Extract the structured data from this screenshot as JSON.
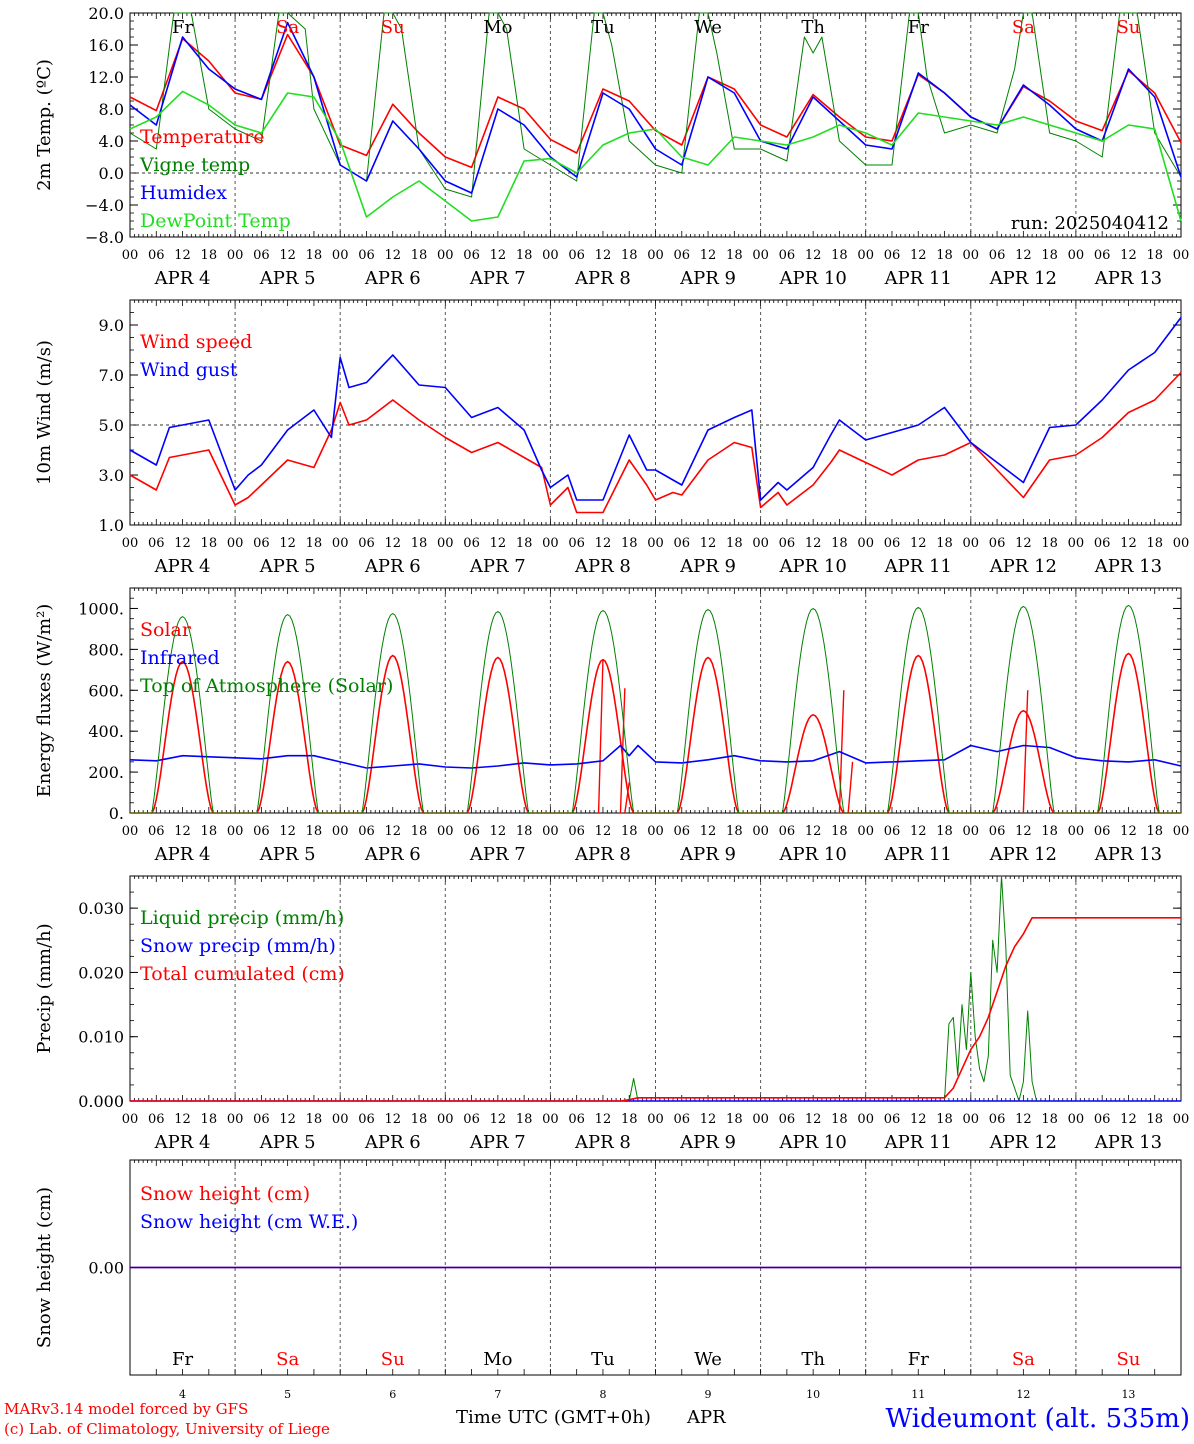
{
  "common": {
    "days": [
      "4",
      "5",
      "6",
      "7",
      "8",
      "9",
      "10",
      "11",
      "12",
      "13"
    ],
    "month": "APR",
    "hour_ticks": [
      "00",
      "06",
      "12",
      "18"
    ],
    "last_hour": "00",
    "weekdays": [
      "Fr",
      "Sa",
      "Su",
      "Mo",
      "Tu",
      "We",
      "Th",
      "Fr",
      "Sa",
      "Su"
    ],
    "weekend_days": [
      1,
      2,
      8,
      9
    ]
  },
  "colors": {
    "red": "#ff0000",
    "green": "#008000",
    "blue": "#0000ff",
    "lime": "#22dd22",
    "black": "#000000"
  },
  "footer": {
    "credit1": "MARv3.14 model forced by GFS",
    "credit2": "(c) Lab. of Climatology, University of Liege",
    "axis_title": "Time UTC (GMT+0h)",
    "month": "APR",
    "station": "Wideumont (alt. 535m)"
  },
  "chart_data": [
    {
      "type": "line",
      "ylabel": "2m Temp. (ºC)",
      "ylim": [
        -8,
        20
      ],
      "yticks": [
        "20.0",
        "16.0",
        "12.0",
        "8.0",
        "4.0",
        "0.0",
        "−4.0",
        "−8.0"
      ],
      "ytick_values": [
        20,
        16,
        12,
        8,
        4,
        0,
        -4,
        -8
      ],
      "reference_line": 0,
      "run_label": "run: 2025040412",
      "x_unit": "hours since Apr 4 00 UTC",
      "series": [
        {
          "name": "Temperature",
          "color": "red",
          "x": [
            0,
            6,
            12,
            18,
            24,
            30,
            36,
            42,
            48,
            54,
            60,
            66,
            72,
            78,
            84,
            90,
            96,
            102,
            108,
            114,
            120,
            126,
            132,
            138,
            144,
            150,
            156,
            162,
            168,
            174,
            180,
            186,
            192,
            198,
            204,
            210,
            216,
            222,
            228,
            234,
            240
          ],
          "y": [
            9.5,
            7.8,
            16.8,
            14.0,
            10.0,
            9.2,
            17.3,
            12.0,
            3.5,
            2.2,
            8.6,
            5.0,
            2.0,
            0.7,
            9.5,
            8.0,
            4.2,
            2.5,
            10.5,
            9.0,
            5.3,
            3.5,
            12.0,
            10.5,
            6.0,
            4.5,
            9.8,
            7.0,
            4.5,
            4.0,
            12.3,
            10.0,
            7.0,
            5.5,
            10.8,
            9.0,
            6.5,
            5.3,
            12.8,
            10.0,
            3.8
          ]
        },
        {
          "name": "Vigne temp",
          "color": "green",
          "x": [
            0,
            6,
            10,
            12,
            14,
            18,
            24,
            30,
            34,
            36,
            40,
            42,
            48,
            54,
            58,
            60,
            62,
            66,
            72,
            78,
            82,
            84,
            86,
            90,
            96,
            102,
            106,
            108,
            110,
            114,
            120,
            126,
            130,
            132,
            134,
            138,
            144,
            150,
            154,
            156,
            158,
            162,
            168,
            174,
            178,
            180,
            182,
            186,
            192,
            198,
            202,
            204,
            206,
            210,
            216,
            222,
            226,
            228,
            230,
            234,
            240
          ],
          "y": [
            5.0,
            3.0,
            20.0,
            20.0,
            20.0,
            8.0,
            5.5,
            4.0,
            20.0,
            20.0,
            18.0,
            8.0,
            1.0,
            -1.0,
            20.0,
            20.0,
            18.0,
            3.0,
            -2.0,
            -3.0,
            20.0,
            20.0,
            18.0,
            3.0,
            1.0,
            -1.0,
            20.0,
            20.0,
            16.0,
            4.0,
            1.0,
            0.0,
            20.0,
            20.0,
            15.0,
            3.0,
            3.0,
            1.5,
            17.0,
            15.0,
            17.0,
            4.0,
            1.0,
            1.0,
            20.0,
            20.0,
            12.0,
            5.0,
            6.0,
            5.0,
            13.0,
            20.0,
            20.0,
            5.0,
            4.0,
            2.0,
            20.0,
            20.0,
            20.0,
            5.0,
            -0.5
          ]
        },
        {
          "name": "Humidex",
          "color": "blue",
          "x": [
            0,
            6,
            12,
            18,
            24,
            30,
            36,
            42,
            48,
            54,
            60,
            66,
            72,
            78,
            84,
            90,
            96,
            102,
            108,
            114,
            120,
            126,
            132,
            138,
            144,
            150,
            156,
            162,
            168,
            174,
            180,
            186,
            192,
            198,
            204,
            210,
            216,
            222,
            228,
            234,
            240
          ],
          "y": [
            8.5,
            6.0,
            17.0,
            13.0,
            10.5,
            9.2,
            18.8,
            12.0,
            1.0,
            -1.0,
            6.5,
            3.0,
            -1.0,
            -2.5,
            8.0,
            6.0,
            2.0,
            -0.5,
            10.0,
            8.0,
            3.0,
            1.0,
            12.0,
            10.0,
            4.0,
            3.0,
            9.5,
            6.5,
            3.5,
            3.0,
            12.5,
            10.0,
            7.0,
            5.5,
            11.0,
            8.5,
            5.5,
            4.0,
            13.0,
            9.5,
            -0.5
          ]
        },
        {
          "name": "DewPoint Temp",
          "color": "lime",
          "x": [
            0,
            6,
            12,
            18,
            24,
            30,
            36,
            42,
            48,
            54,
            60,
            66,
            72,
            78,
            84,
            90,
            96,
            102,
            108,
            114,
            120,
            126,
            132,
            138,
            144,
            150,
            156,
            162,
            168,
            174,
            180,
            186,
            192,
            198,
            204,
            210,
            216,
            222,
            228,
            234,
            240
          ],
          "y": [
            5.5,
            7.0,
            10.2,
            8.5,
            6.0,
            5.0,
            10.0,
            9.5,
            4.0,
            -5.5,
            -3.0,
            -1.0,
            -3.5,
            -6.0,
            -5.5,
            1.5,
            1.8,
            0.0,
            3.5,
            5.0,
            5.5,
            2.0,
            1.0,
            4.5,
            4.0,
            3.5,
            4.5,
            6.0,
            5.0,
            3.5,
            7.5,
            7.0,
            6.5,
            6.0,
            7.0,
            6.0,
            5.0,
            4.0,
            6.0,
            5.5,
            -6.0
          ]
        }
      ]
    },
    {
      "type": "line",
      "ylabel": "10m Wind (m/s)",
      "ylim": [
        1,
        10
      ],
      "yticks": [
        "9.0",
        "7.0",
        "5.0",
        "3.0",
        "1.0"
      ],
      "ytick_values": [
        9,
        7,
        5,
        3,
        1
      ],
      "reference_line": 5,
      "x_unit": "hours since Apr 4 00 UTC",
      "series": [
        {
          "name": "Wind speed",
          "color": "red",
          "x": [
            0,
            6,
            9,
            12,
            18,
            24,
            27,
            30,
            36,
            42,
            46,
            48,
            50,
            54,
            60,
            66,
            72,
            78,
            84,
            90,
            94,
            96,
            100,
            102,
            108,
            114,
            118,
            120,
            124,
            126,
            132,
            138,
            142,
            144,
            148,
            150,
            156,
            160,
            162,
            168,
            174,
            180,
            186,
            192,
            198,
            204,
            210,
            216,
            222,
            228,
            234,
            240
          ],
          "y": [
            3.0,
            2.4,
            3.7,
            3.8,
            4.0,
            1.8,
            2.1,
            2.6,
            3.6,
            3.3,
            4.8,
            5.9,
            5.0,
            5.2,
            6.0,
            5.2,
            4.5,
            3.9,
            4.3,
            3.7,
            3.3,
            1.8,
            2.5,
            1.5,
            1.5,
            3.6,
            2.6,
            2.0,
            2.3,
            2.2,
            3.6,
            4.3,
            4.1,
            1.7,
            2.3,
            1.8,
            2.6,
            3.5,
            4.0,
            3.5,
            3.0,
            3.6,
            3.8,
            4.3,
            3.2,
            2.1,
            3.6,
            3.8,
            4.5,
            5.5,
            6.0,
            7.1
          ]
        },
        {
          "name": "Wind gust",
          "color": "blue",
          "x": [
            0,
            6,
            9,
            12,
            18,
            24,
            27,
            30,
            36,
            42,
            46,
            48,
            50,
            54,
            60,
            66,
            72,
            78,
            84,
            90,
            94,
            96,
            100,
            102,
            108,
            114,
            118,
            120,
            124,
            126,
            132,
            138,
            142,
            144,
            148,
            150,
            156,
            160,
            162,
            168,
            174,
            180,
            186,
            192,
            198,
            204,
            210,
            216,
            222,
            228,
            234,
            240
          ],
          "y": [
            4.0,
            3.4,
            4.9,
            5.0,
            5.2,
            2.4,
            3.0,
            3.4,
            4.8,
            5.6,
            4.5,
            7.7,
            6.5,
            6.7,
            7.8,
            6.6,
            6.5,
            5.3,
            5.7,
            4.8,
            3.2,
            2.5,
            3.0,
            2.0,
            2.0,
            4.6,
            3.2,
            3.2,
            2.8,
            2.6,
            4.8,
            5.3,
            5.6,
            2.0,
            2.7,
            2.4,
            3.3,
            4.6,
            5.2,
            4.4,
            4.7,
            5.0,
            5.7,
            4.3,
            3.5,
            2.7,
            4.9,
            5.0,
            6.0,
            7.2,
            7.9,
            9.3
          ]
        }
      ]
    },
    {
      "type": "line",
      "ylabel": "Energy fluxes (W/m²)",
      "ylim": [
        0,
        1100
      ],
      "yticks": [
        "1000.",
        "800.",
        "600.",
        "400.",
        "200.",
        "0."
      ],
      "ytick_values": [
        1000,
        800,
        600,
        400,
        200,
        0
      ],
      "x_unit": "hours since Apr 4 00 UTC",
      "series": [
        {
          "name": "Solar",
          "color": "red",
          "peaks": [
            740,
            740,
            770,
            760,
            750,
            760,
            480,
            770,
            500,
            780
          ],
          "special": [
            {
              "x": 113,
              "y": 610
            },
            {
              "x": 108,
              "y": 750
            },
            {
              "x": 114,
              "y": 150
            },
            {
              "x": 163,
              "y": 600
            },
            {
              "x": 165,
              "y": 250
            },
            {
              "x": 205,
              "y": 600
            }
          ]
        },
        {
          "name": "Infrared",
          "color": "blue",
          "x": [
            0,
            6,
            12,
            18,
            24,
            30,
            36,
            42,
            48,
            54,
            60,
            66,
            72,
            78,
            84,
            90,
            96,
            102,
            108,
            112,
            114,
            116,
            120,
            126,
            132,
            138,
            144,
            150,
            156,
            162,
            168,
            174,
            180,
            186,
            192,
            198,
            204,
            210,
            216,
            222,
            228,
            234,
            240
          ],
          "y": [
            260,
            255,
            280,
            275,
            270,
            265,
            280,
            280,
            250,
            220,
            230,
            240,
            225,
            220,
            230,
            245,
            235,
            240,
            255,
            330,
            280,
            330,
            250,
            245,
            260,
            280,
            255,
            250,
            255,
            300,
            245,
            250,
            255,
            260,
            330,
            300,
            330,
            320,
            270,
            255,
            250,
            260,
            230
          ]
        },
        {
          "name": "Top of Atmosphere (Solar)",
          "color": "green",
          "peaks": [
            960,
            970,
            975,
            985,
            990,
            995,
            1000,
            1005,
            1010,
            1015
          ]
        }
      ]
    },
    {
      "type": "line",
      "ylabel": "Precip (mm/h)",
      "ylim": [
        0,
        0.035
      ],
      "yticks": [
        "0.030",
        "0.020",
        "0.010",
        "0.000"
      ],
      "ytick_values": [
        0.03,
        0.02,
        0.01,
        0.0
      ],
      "x_unit": "hours since Apr 4 00 UTC",
      "series": [
        {
          "name": "Liquid precip (mm/h)",
          "color": "green",
          "x": [
            0,
            113,
            114,
            115,
            116,
            118,
            120,
            186,
            187,
            188,
            189,
            190,
            191,
            192,
            193,
            194,
            195,
            196,
            197,
            198,
            199,
            200,
            201,
            202,
            203,
            204,
            205,
            206,
            207,
            208,
            209,
            210,
            211,
            212,
            213,
            214,
            215,
            216,
            240
          ],
          "y": [
            0,
            0,
            0,
            0.0035,
            0,
            0,
            0,
            0,
            0.012,
            0.013,
            0.004,
            0.015,
            0.008,
            0.02,
            0.01,
            0.005,
            0.003,
            0.007,
            0.025,
            0.02,
            0.035,
            0.024,
            0.004,
            0.002,
            0.0,
            0.003,
            0.014,
            0.003,
            0.0,
            0,
            0,
            0,
            0,
            0,
            0,
            0,
            0,
            0,
            0
          ]
        },
        {
          "name": "Snow precip (mm/h)",
          "color": "blue",
          "x": [
            0,
            240
          ],
          "y": [
            0,
            0
          ]
        },
        {
          "name": "Total cumulated (cm)",
          "color": "red",
          "x": [
            0,
            112,
            114,
            116,
            186,
            188,
            190,
            192,
            194,
            196,
            198,
            200,
            202,
            204,
            206,
            208,
            210,
            240
          ],
          "y": [
            0,
            0,
            0.0002,
            0.0005,
            0.0005,
            0.002,
            0.005,
            0.008,
            0.01,
            0.013,
            0.017,
            0.021,
            0.024,
            0.026,
            0.0285,
            0.0285,
            0.0285,
            0.0285
          ]
        }
      ]
    },
    {
      "type": "line",
      "ylabel": "Snow height (cm)",
      "ylim": [
        -1,
        1
      ],
      "yticks": [
        "0.00"
      ],
      "ytick_values": [
        0
      ],
      "x_unit": "hours since Apr 4 00 UTC",
      "series": [
        {
          "name": "Snow height (cm)",
          "color": "red",
          "x": [
            0,
            240
          ],
          "y": [
            0,
            0
          ]
        },
        {
          "name": "Snow height (cm W.E.)",
          "color": "blue",
          "x": [
            0,
            240
          ],
          "y": [
            0,
            0
          ]
        }
      ]
    }
  ]
}
